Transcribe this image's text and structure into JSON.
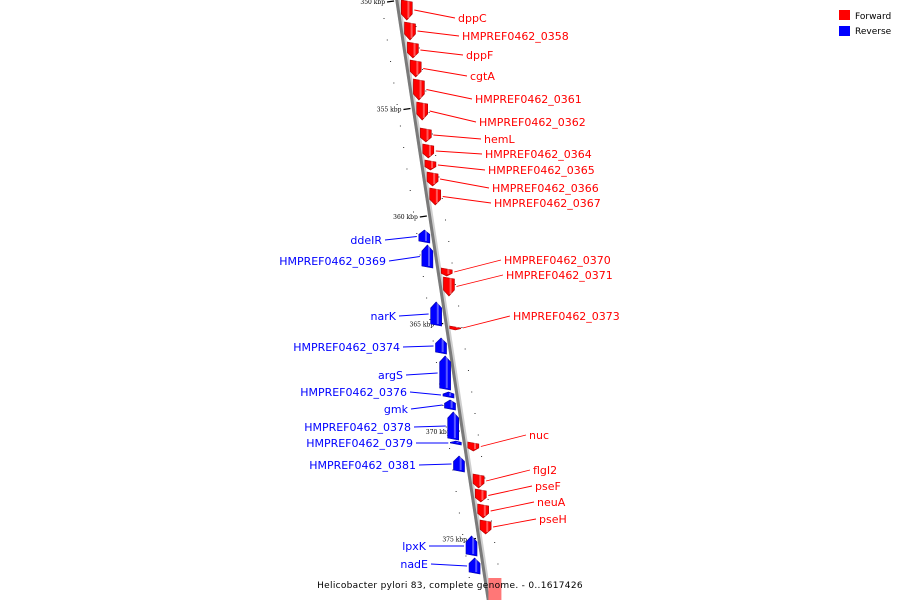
{
  "chart_data": {
    "type": "genome-map",
    "caption": "Helicobacter pylori 83, complete genome. - 0..1617426",
    "legend": [
      {
        "label": "Forward",
        "color": "#ff0000"
      },
      {
        "label": "Reverse",
        "color": "#0000ff"
      }
    ],
    "ticks": [
      {
        "label": "350 kbp",
        "kbp": 350
      },
      {
        "label": "355 kbp",
        "kbp": 355
      },
      {
        "label": "360 kbp",
        "kbp": 360
      },
      {
        "label": "365 kbp",
        "kbp": 365
      },
      {
        "label": "370 kbp",
        "kbp": 370
      },
      {
        "label": "375 kbp",
        "kbp": 375
      }
    ],
    "genes": [
      {
        "name": "dppC",
        "strand": "forward"
      },
      {
        "name": "HMPREF0462_0358",
        "strand": "forward"
      },
      {
        "name": "dppF",
        "strand": "forward"
      },
      {
        "name": "cgtA",
        "strand": "forward"
      },
      {
        "name": "HMPREF0462_0361",
        "strand": "forward"
      },
      {
        "name": "HMPREF0462_0362",
        "strand": "forward"
      },
      {
        "name": "hemL",
        "strand": "forward"
      },
      {
        "name": "HMPREF0462_0364",
        "strand": "forward"
      },
      {
        "name": "HMPREF0462_0365",
        "strand": "forward"
      },
      {
        "name": "HMPREF0462_0366",
        "strand": "forward"
      },
      {
        "name": "HMPREF0462_0367",
        "strand": "forward"
      },
      {
        "name": "ddeIR",
        "strand": "reverse"
      },
      {
        "name": "HMPREF0462_0369",
        "strand": "reverse"
      },
      {
        "name": "HMPREF0462_0370",
        "strand": "forward"
      },
      {
        "name": "HMPREF0462_0371",
        "strand": "forward"
      },
      {
        "name": "narK",
        "strand": "reverse"
      },
      {
        "name": "HMPREF0462_0373",
        "strand": "forward"
      },
      {
        "name": "HMPREF0462_0374",
        "strand": "reverse"
      },
      {
        "name": "argS",
        "strand": "reverse"
      },
      {
        "name": "HMPREF0462_0376",
        "strand": "reverse"
      },
      {
        "name": "gmk",
        "strand": "reverse"
      },
      {
        "name": "HMPREF0462_0378",
        "strand": "reverse"
      },
      {
        "name": "HMPREF0462_0379",
        "strand": "reverse"
      },
      {
        "name": "HMPREF0462_0381",
        "strand": "reverse"
      },
      {
        "name": "nuc",
        "strand": "forward"
      },
      {
        "name": "flgI2",
        "strand": "forward"
      },
      {
        "name": "pseF",
        "strand": "forward"
      },
      {
        "name": "neuA",
        "strand": "forward"
      },
      {
        "name": "pseH",
        "strand": "forward"
      },
      {
        "name": "lpxK",
        "strand": "reverse"
      },
      {
        "name": "nadE",
        "strand": "reverse"
      }
    ]
  }
}
